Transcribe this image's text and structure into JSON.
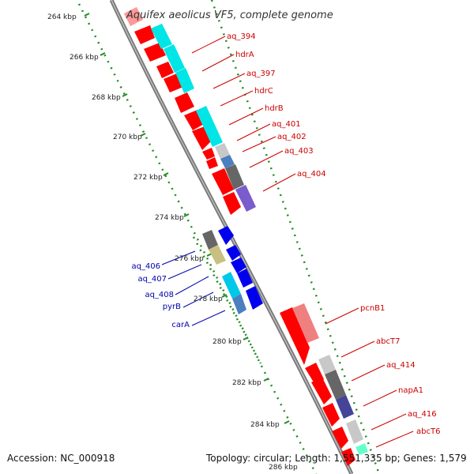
{
  "title": "Aquifex aeolicus VF5, complete genome",
  "accession_text": "Accession: NC_000918",
  "topology_text": "Topology: circular; Length: 1,551,335 bp; Genes: 1,579",
  "ticks": [
    "264 kbp",
    "266 kbp",
    "268 kbp",
    "270 kbp",
    "272 kbp",
    "274 kbp",
    "276 kbp",
    "278 kbp",
    "280 kbp",
    "282 kbp",
    "284 kbp",
    "286 kbp"
  ],
  "colors": {
    "forward_label": "#cc0000",
    "reverse_label": "#0000aa",
    "forward_gene": "#ff0000",
    "reverse_gene": "#0000ee",
    "backbone": "#888888",
    "tick_dots": "#228b22"
  },
  "forward_labels": [
    "aq_394",
    "hdrA",
    "aq_397",
    "hdrC",
    "hdrB",
    "aq_401",
    "aq_402",
    "aq_403",
    "aq_404",
    "pcnB1",
    "abcT7",
    "aq_414",
    "napA1",
    "aq_416",
    "abcT6"
  ],
  "reverse_labels": [
    "aq_406",
    "aq_407",
    "aq_408",
    "pyrB",
    "carA"
  ]
}
